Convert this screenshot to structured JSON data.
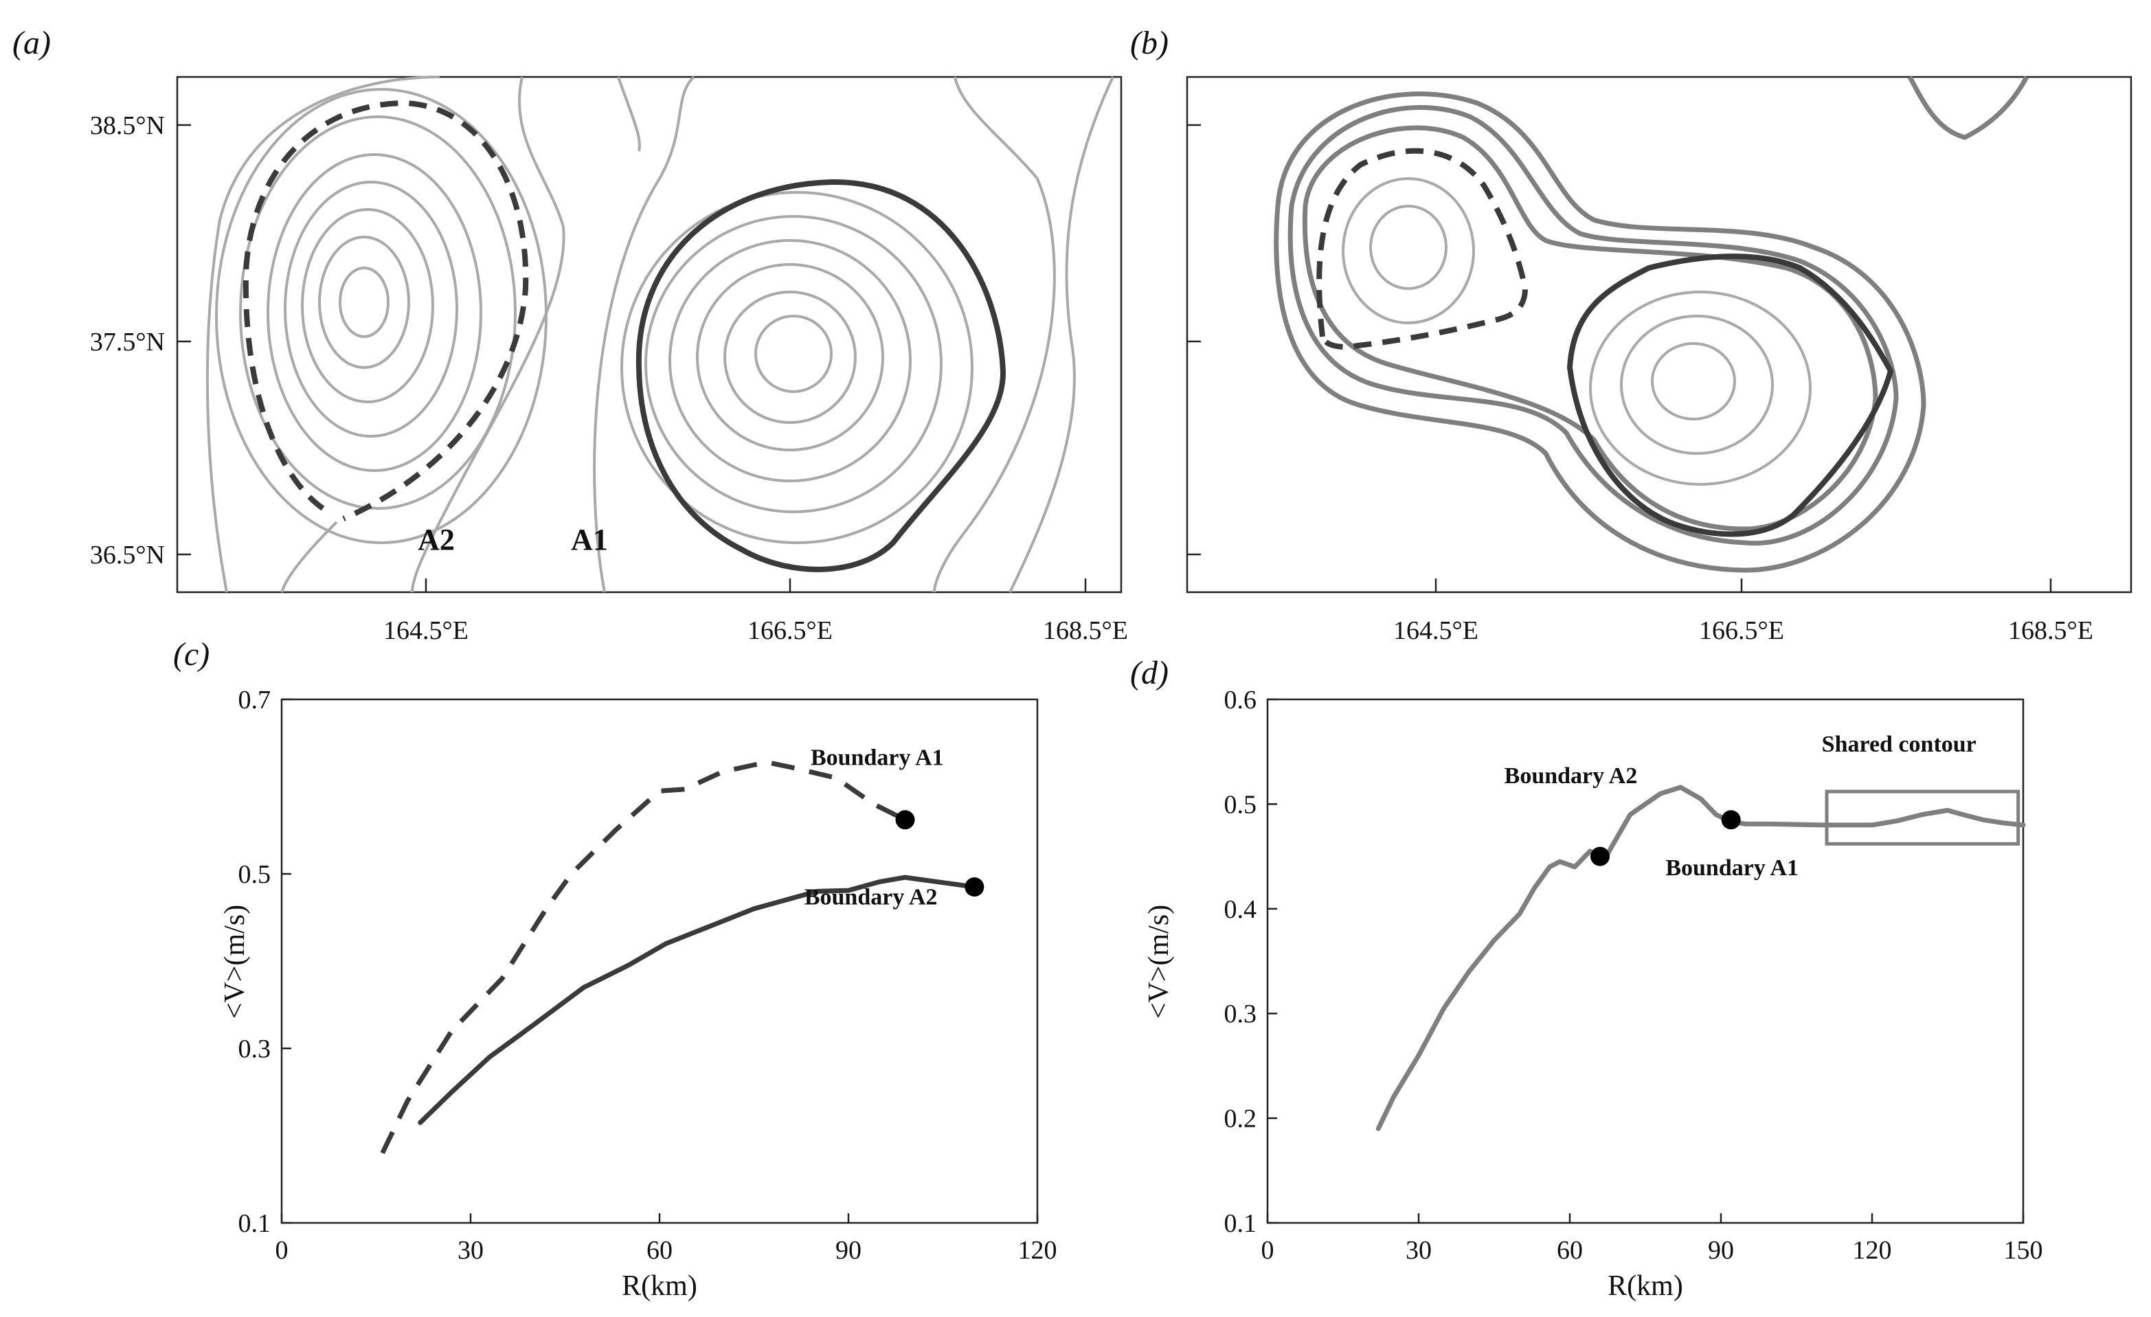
{
  "panel_labels": [
    "(a)",
    "(b)",
    "(c)",
    "(d)"
  ],
  "map_a": {
    "lat_ticks": [
      "38.5°N",
      "37.5°N",
      "36.5°N"
    ],
    "lon_ticks": [
      "164.5°E",
      "166.5°E",
      "168.5°E"
    ],
    "region_labels": [
      "A2",
      "A1"
    ]
  },
  "map_b": {
    "lon_ticks": [
      "164.5°E",
      "166.5°E",
      "168.5°E"
    ]
  },
  "colors": {
    "dark": "#3a3a3a",
    "mid": "#7f7f7f",
    "light": "#a9a9a9",
    "dot": "#000000"
  },
  "chart_data": [
    {
      "id": "c",
      "type": "line",
      "title": "",
      "xlabel": "R(km)",
      "ylabel": "<V>(m/s)",
      "xlim": [
        0,
        120
      ],
      "ylim": [
        0.1,
        0.7
      ],
      "xticks": [
        0,
        30,
        60,
        90,
        120
      ],
      "yticks": [
        0.1,
        0.3,
        0.5,
        0.7
      ],
      "series": [
        {
          "name": "Boundary A1",
          "style": "dashed",
          "x": [
            16,
            20,
            27,
            35,
            42,
            46,
            53,
            60,
            64,
            70,
            77,
            81,
            88,
            94,
            99
          ],
          "y": [
            0.18,
            0.24,
            0.32,
            0.38,
            0.46,
            0.5,
            0.55,
            0.595,
            0.597,
            0.617,
            0.628,
            0.622,
            0.61,
            0.58,
            0.562
          ],
          "end_marker": {
            "x": 99,
            "y": 0.562
          }
        },
        {
          "name": "Boundary A2",
          "style": "solid",
          "x": [
            22,
            27,
            33,
            40,
            48,
            55,
            61,
            68,
            75,
            80,
            85,
            90,
            95,
            99,
            105,
            110
          ],
          "y": [
            0.215,
            0.25,
            0.29,
            0.327,
            0.37,
            0.395,
            0.42,
            0.44,
            0.46,
            0.47,
            0.48,
            0.481,
            0.491,
            0.496,
            0.49,
            0.485
          ],
          "end_marker": {
            "x": 110,
            "y": 0.485
          }
        }
      ],
      "annotations": [
        {
          "text": "Boundary A1",
          "x": 84,
          "y": 0.625
        },
        {
          "text": "Boundary A2",
          "x": 83,
          "y": 0.465
        }
      ]
    },
    {
      "id": "d",
      "type": "line",
      "title": "",
      "xlabel": "R(km)",
      "ylabel": "<V>(m/s)",
      "xlim": [
        0,
        150
      ],
      "ylim": [
        0.1,
        0.6
      ],
      "xticks": [
        0,
        30,
        60,
        90,
        120,
        150
      ],
      "yticks": [
        0.1,
        0.2,
        0.3,
        0.4,
        0.5,
        0.6
      ],
      "series": [
        {
          "name": "Shared contour",
          "style": "solid",
          "x": [
            22,
            25,
            30,
            35,
            40,
            45,
            50,
            53,
            56,
            58,
            61,
            64,
            67,
            69,
            72,
            75,
            78,
            82,
            86,
            89,
            92,
            95,
            100,
            110,
            120,
            125,
            130,
            135,
            138,
            142,
            146,
            150
          ],
          "y": [
            0.19,
            0.22,
            0.26,
            0.305,
            0.34,
            0.37,
            0.395,
            0.42,
            0.44,
            0.445,
            0.44,
            0.455,
            0.448,
            0.465,
            0.49,
            0.5,
            0.51,
            0.516,
            0.505,
            0.49,
            0.483,
            0.481,
            0.481,
            0.48,
            0.48,
            0.484,
            0.49,
            0.494,
            0.49,
            0.485,
            0.482,
            0.48
          ],
          "markers": [
            {
              "label": "Boundary A2",
              "x": 66,
              "y": 0.45
            },
            {
              "label": "Boundary A1",
              "x": 92,
              "y": 0.485
            }
          ]
        }
      ],
      "annotations": [
        {
          "text": "Boundary A2",
          "x": 47,
          "y": 0.52
        },
        {
          "text": "Boundary A1",
          "x": 79,
          "y": 0.432
        },
        {
          "text": "Shared contour",
          "x": 110,
          "y": 0.55
        }
      ],
      "highlight_box": {
        "label": "Shared contour",
        "x": [
          111,
          149
        ],
        "y": [
          0.462,
          0.512
        ]
      }
    }
  ]
}
